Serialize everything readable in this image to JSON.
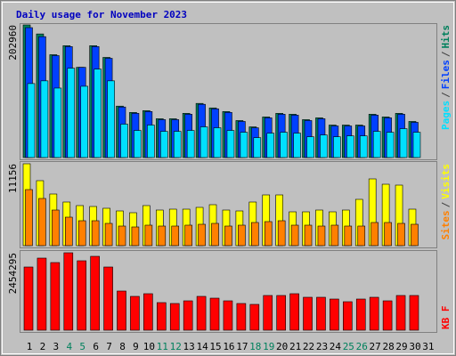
{
  "title": "Daily usage for November 2023",
  "chart_data": [
    {
      "type": "bar",
      "categories": [
        "1",
        "2",
        "3",
        "4",
        "5",
        "6",
        "7",
        "8",
        "9",
        "10",
        "11",
        "12",
        "13",
        "14",
        "15",
        "16",
        "17",
        "18",
        "19",
        "20",
        "21",
        "22",
        "23",
        "24",
        "25",
        "26",
        "27",
        "28",
        "29",
        "30",
        "31"
      ],
      "series": [
        {
          "name": "Hits",
          "color": "#00805c",
          "values": [
            202960,
            189157,
            157400,
            171207,
            138070,
            171207,
            153258,
            78700,
            69035,
            71796,
            59370,
            59370,
            67654,
            82842,
            75939,
            70416,
            56609,
            46944,
            62132,
            67654,
            66274,
            57989,
            60751,
            49705,
            49705,
            49705,
            66274,
            62132,
            67654,
            55228,
            null
          ]
        },
        {
          "name": "Files",
          "color": "#0040ff",
          "values": [
            198818,
            185015,
            156019,
            169826,
            138070,
            169826,
            151877,
            77319,
            67654,
            70416,
            57989,
            57989,
            66274,
            81461,
            74558,
            69035,
            55228,
            45563,
            60751,
            66274,
            64893,
            56609,
            59370,
            48324,
            48324,
            48324,
            64893,
            60751,
            66274,
            53847,
            null
          ]
        },
        {
          "name": "Pages",
          "color": "#00e0ff",
          "values": [
            113217,
            117360,
            106314,
            136690,
            109076,
            135309,
            117360,
            51086,
            41421,
            49705,
            40040,
            40040,
            41421,
            46944,
            45563,
            41421,
            38660,
            30375,
            37279,
            38660,
            37279,
            31756,
            34518,
            31756,
            33137,
            33137,
            40040,
            38660,
            44182,
            38660,
            null
          ]
        }
      ],
      "ylim": [
        0,
        202960
      ],
      "yticks": [
        202960
      ],
      "legend_separator": "/"
    },
    {
      "type": "bar",
      "categories": [
        "1",
        "2",
        "3",
        "4",
        "5",
        "6",
        "7",
        "8",
        "9",
        "10",
        "11",
        "12",
        "13",
        "14",
        "15",
        "16",
        "17",
        "18",
        "19",
        "20",
        "21",
        "22",
        "23",
        "24",
        "25",
        "26",
        "27",
        "28",
        "29",
        "30",
        "31"
      ],
      "series": [
        {
          "name": "Visits",
          "color": "#ffff00",
          "values": [
            11156,
            8852,
            7033,
            5942,
            5457,
            5335,
            5093,
            4729,
            4487,
            5457,
            4850,
            4972,
            4972,
            5214,
            5578,
            4850,
            4729,
            5942,
            6912,
            6912,
            4608,
            4608,
            4850,
            4608,
            4850,
            6306,
            9095,
            8367,
            8246,
            4972,
            null
          ]
        },
        {
          "name": "Sites",
          "color": "#ff8000",
          "values": [
            7639,
            6427,
            4850,
            3880,
            3395,
            3395,
            3032,
            2668,
            2546,
            2789,
            2668,
            2668,
            2789,
            2910,
            3032,
            2668,
            2789,
            3153,
            3274,
            3395,
            2789,
            2789,
            2668,
            2789,
            2668,
            2668,
            3153,
            3153,
            3032,
            2910,
            null
          ]
        }
      ],
      "ylim": [
        0,
        11156
      ],
      "yticks": [
        11156
      ],
      "legend_separator": "/"
    },
    {
      "type": "bar",
      "categories": [
        "1",
        "2",
        "3",
        "4",
        "5",
        "6",
        "7",
        "8",
        "9",
        "10",
        "11",
        "12",
        "13",
        "14",
        "15",
        "16",
        "17",
        "18",
        "19",
        "20",
        "21",
        "22",
        "23",
        "24",
        "25",
        "26",
        "27",
        "28",
        "29",
        "30",
        "31"
      ],
      "category_colors": [
        "#000000",
        "#000000",
        "#000000",
        "#00805c",
        "#00805c",
        "#000000",
        "#000000",
        "#000000",
        "#000000",
        "#000000",
        "#00805c",
        "#00805c",
        "#000000",
        "#000000",
        "#000000",
        "#000000",
        "#000000",
        "#00805c",
        "#00805c",
        "#000000",
        "#000000",
        "#000000",
        "#000000",
        "#000000",
        "#00805c",
        "#00805c",
        "#000000",
        "#000000",
        "#000000",
        "#000000",
        "#000000"
      ],
      "series": [
        {
          "name": "KB F",
          "color": "#ff0000",
          "values": [
            2002910,
            2285010,
            2143960,
            2454295,
            2200380,
            2341430,
            2002910,
            1241240,
            1071980,
            1156610,
            874510,
            846300,
            930930,
            1071980,
            1015560,
            930930,
            846300,
            818090,
            1100190,
            1100190,
            1156610,
            1043770,
            1043770,
            987350,
            902720,
            987350,
            1043770,
            930930,
            1100190,
            1100190,
            null
          ]
        }
      ],
      "ylim": [
        0,
        2454295
      ],
      "yticks": [
        2454295
      ]
    }
  ]
}
